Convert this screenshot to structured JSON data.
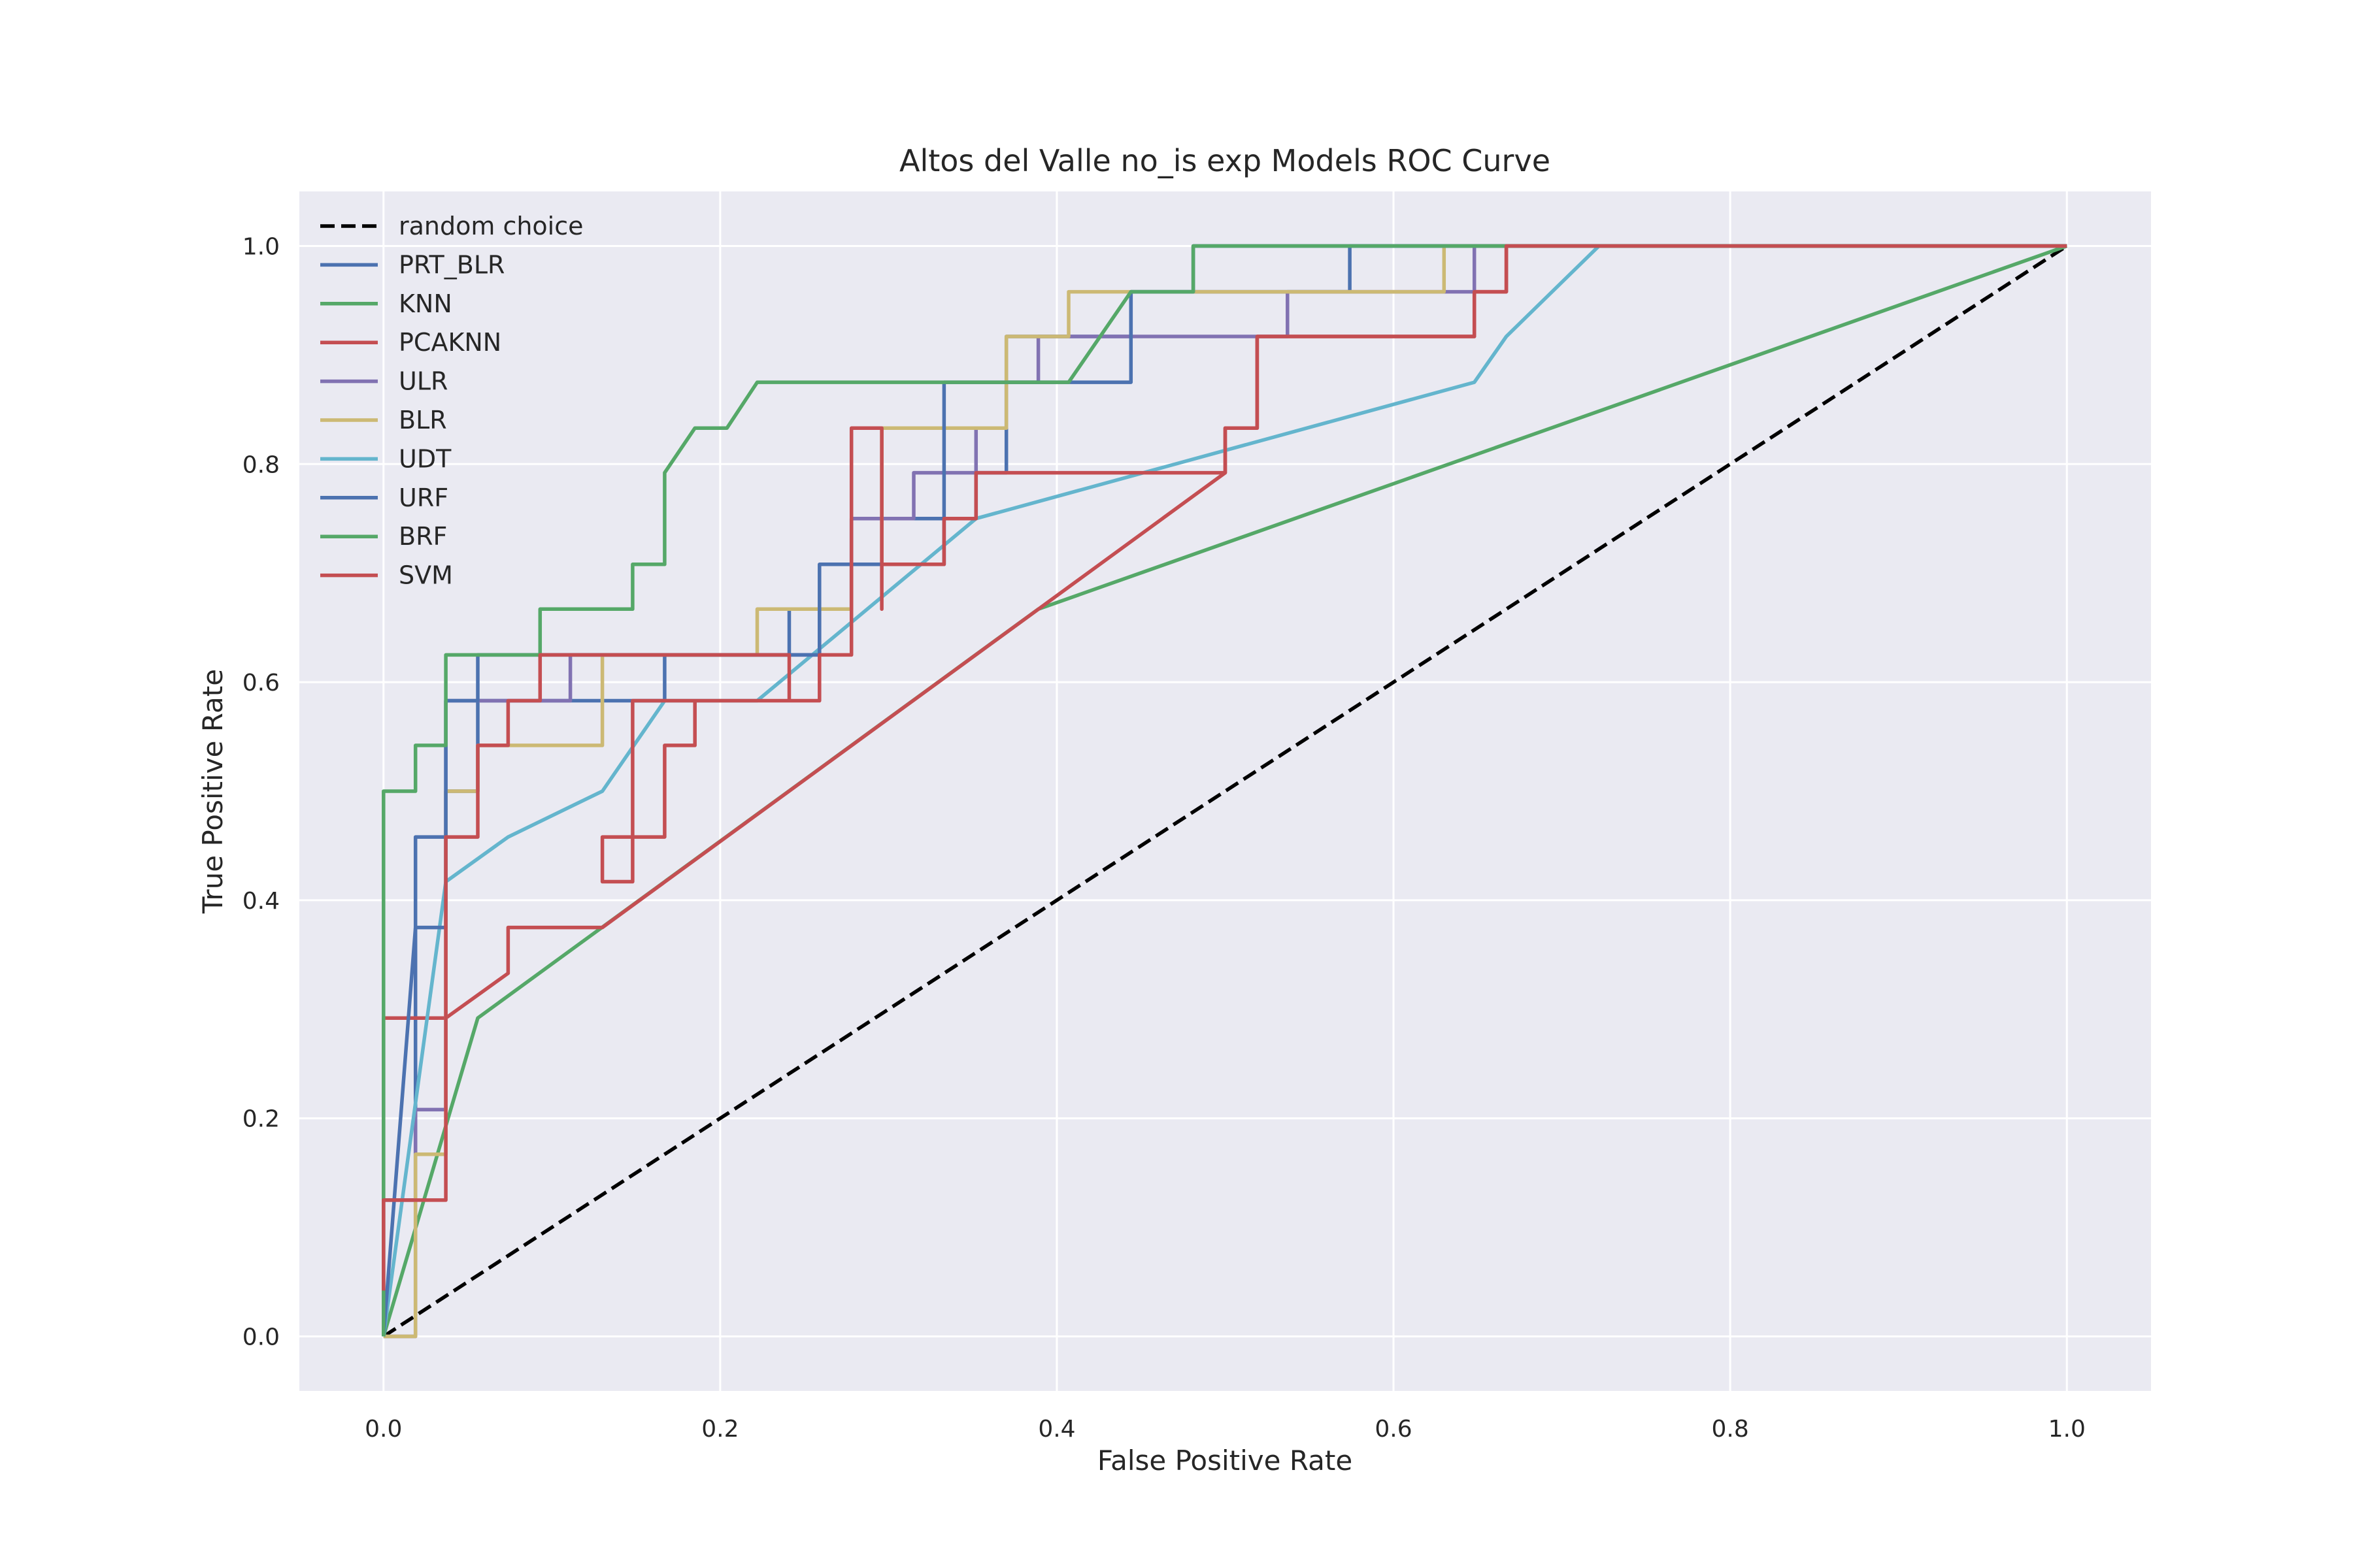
{
  "chart_data": {
    "type": "line",
    "title": "Altos del Valle no_is exp Models ROC Curve",
    "xlabel": "False Positive Rate",
    "ylabel": "True Positive Rate",
    "xlim": [
      -0.05,
      1.05
    ],
    "ylim": [
      -0.05,
      1.05
    ],
    "x_ticks": [
      "0.0",
      "0.2",
      "0.4",
      "0.6",
      "0.8",
      "1.0"
    ],
    "y_ticks": [
      "0.0",
      "0.2",
      "0.4",
      "0.6",
      "0.8",
      "1.0"
    ],
    "x_tick_values": [
      0,
      0.2,
      0.4,
      0.6,
      0.8,
      1.0
    ],
    "y_tick_values": [
      0,
      0.2,
      0.4,
      0.6,
      0.8,
      1.0
    ],
    "grid": true,
    "legend_position": "top-left",
    "series": [
      {
        "name": "random choice",
        "color": "#000000",
        "dashed": true,
        "points": [
          [
            0,
            0
          ],
          [
            1,
            1
          ]
        ]
      },
      {
        "name": "PRT_BLR",
        "color": "#4C72B0",
        "dashed": false,
        "points": [
          [
            0,
            0
          ],
          [
            0,
            0.125
          ],
          [
            0.019,
            0.125
          ],
          [
            0.019,
            0.458
          ],
          [
            0.037,
            0.458
          ],
          [
            0.037,
            0.5
          ],
          [
            0.056,
            0.5
          ],
          [
            0.056,
            0.583
          ],
          [
            0.167,
            0.583
          ],
          [
            0.167,
            0.625
          ],
          [
            0.241,
            0.625
          ],
          [
            0.241,
            0.667
          ],
          [
            0.278,
            0.667
          ],
          [
            0.278,
            0.75
          ],
          [
            0.352,
            0.75
          ],
          [
            0.352,
            0.792
          ],
          [
            0.37,
            0.792
          ],
          [
            0.37,
            0.917
          ],
          [
            0.444,
            0.917
          ],
          [
            0.444,
            0.958
          ],
          [
            0.574,
            0.958
          ],
          [
            0.574,
            1.0
          ],
          [
            1.0,
            1.0
          ]
        ]
      },
      {
        "name": "KNN",
        "color": "#55A868",
        "dashed": false,
        "points": [
          [
            0,
            0
          ],
          [
            0.056,
            0.292
          ],
          [
            0.389,
            0.667
          ],
          [
            1.0,
            1.0
          ]
        ]
      },
      {
        "name": "PCAKNN",
        "color": "#C44E52",
        "dashed": false,
        "points": [
          [
            0,
            0
          ],
          [
            0,
            0.292
          ],
          [
            0.037,
            0.292
          ],
          [
            0.074,
            0.333
          ],
          [
            0.074,
            0.375
          ],
          [
            0.13,
            0.375
          ],
          [
            0.5,
            0.792
          ],
          [
            0.5,
            0.833
          ],
          [
            0.519,
            0.833
          ],
          [
            0.519,
            0.917
          ],
          [
            0.648,
            0.917
          ],
          [
            0.648,
            0.958
          ],
          [
            0.667,
            0.958
          ],
          [
            0.667,
            1.0
          ],
          [
            1.0,
            1.0
          ]
        ]
      },
      {
        "name": "ULR",
        "color": "#8172B2",
        "dashed": false,
        "points": [
          [
            0,
            0
          ],
          [
            0.019,
            0
          ],
          [
            0.019,
            0.208
          ],
          [
            0.037,
            0.208
          ],
          [
            0.037,
            0.583
          ],
          [
            0.111,
            0.583
          ],
          [
            0.111,
            0.625
          ],
          [
            0.259,
            0.625
          ],
          [
            0.259,
            0.667
          ],
          [
            0.278,
            0.667
          ],
          [
            0.278,
            0.75
          ],
          [
            0.315,
            0.75
          ],
          [
            0.315,
            0.792
          ],
          [
            0.352,
            0.792
          ],
          [
            0.352,
            0.833
          ],
          [
            0.37,
            0.833
          ],
          [
            0.37,
            0.875
          ],
          [
            0.389,
            0.875
          ],
          [
            0.389,
            0.917
          ],
          [
            0.537,
            0.917
          ],
          [
            0.537,
            0.958
          ],
          [
            0.648,
            0.958
          ],
          [
            0.648,
            1.0
          ],
          [
            1.0,
            1.0
          ]
        ]
      },
      {
        "name": "BLR",
        "color": "#CCB974",
        "dashed": false,
        "points": [
          [
            0,
            0
          ],
          [
            0.019,
            0
          ],
          [
            0.019,
            0.167
          ],
          [
            0.037,
            0.167
          ],
          [
            0.037,
            0.5
          ],
          [
            0.056,
            0.5
          ],
          [
            0.056,
            0.542
          ],
          [
            0.13,
            0.542
          ],
          [
            0.13,
            0.625
          ],
          [
            0.222,
            0.625
          ],
          [
            0.222,
            0.667
          ],
          [
            0.278,
            0.667
          ],
          [
            0.278,
            0.708
          ],
          [
            0.296,
            0.708
          ],
          [
            0.296,
            0.833
          ],
          [
            0.37,
            0.833
          ],
          [
            0.37,
            0.917
          ],
          [
            0.407,
            0.917
          ],
          [
            0.407,
            0.958
          ],
          [
            0.63,
            0.958
          ],
          [
            0.63,
            1.0
          ],
          [
            1.0,
            1.0
          ]
        ]
      },
      {
        "name": "UDT",
        "color": "#64B5CD",
        "dashed": false,
        "points": [
          [
            0,
            0
          ],
          [
            0.037,
            0.417
          ],
          [
            0.074,
            0.458
          ],
          [
            0.13,
            0.5
          ],
          [
            0.167,
            0.583
          ],
          [
            0.222,
            0.583
          ],
          [
            0.352,
            0.75
          ],
          [
            0.648,
            0.875
          ],
          [
            0.667,
            0.917
          ],
          [
            0.722,
            1.0
          ],
          [
            1.0,
            1.0
          ]
        ]
      },
      {
        "name": "URF",
        "color": "#4C72B0",
        "dashed": false,
        "points": [
          [
            0,
            0
          ],
          [
            0.019,
            0.375
          ],
          [
            0.037,
            0.375
          ],
          [
            0.037,
            0.583
          ],
          [
            0.056,
            0.583
          ],
          [
            0.056,
            0.625
          ],
          [
            0.259,
            0.625
          ],
          [
            0.259,
            0.708
          ],
          [
            0.333,
            0.708
          ],
          [
            0.333,
            0.875
          ],
          [
            0.407,
            0.875
          ],
          [
            0.444,
            0.875
          ],
          [
            0.444,
            0.958
          ],
          [
            0.481,
            0.958
          ],
          [
            0.481,
            1.0
          ],
          [
            1.0,
            1.0
          ]
        ]
      },
      {
        "name": "BRF",
        "color": "#55A868",
        "dashed": false,
        "points": [
          [
            0,
            0
          ],
          [
            0,
            0.5
          ],
          [
            0.019,
            0.5
          ],
          [
            0.019,
            0.542
          ],
          [
            0.037,
            0.542
          ],
          [
            0.037,
            0.625
          ],
          [
            0.093,
            0.625
          ],
          [
            0.093,
            0.667
          ],
          [
            0.148,
            0.667
          ],
          [
            0.148,
            0.708
          ],
          [
            0.167,
            0.708
          ],
          [
            0.167,
            0.792
          ],
          [
            0.185,
            0.833
          ],
          [
            0.204,
            0.833
          ],
          [
            0.222,
            0.875
          ],
          [
            0.407,
            0.875
          ],
          [
            0.444,
            0.958
          ],
          [
            0.481,
            0.958
          ],
          [
            0.481,
            1.0
          ],
          [
            1.0,
            1.0
          ]
        ]
      },
      {
        "name": "SVM",
        "color": "#C44E52",
        "dashed": false,
        "points": [
          [
            0,
            0.042
          ],
          [
            0,
            0.125
          ],
          [
            0.037,
            0.125
          ],
          [
            0.037,
            0.458
          ],
          [
            0.056,
            0.458
          ],
          [
            0.056,
            0.542
          ],
          [
            0.074,
            0.542
          ],
          [
            0.074,
            0.583
          ],
          [
            0.093,
            0.583
          ],
          [
            0.093,
            0.625
          ],
          [
            0.241,
            0.625
          ],
          [
            0.241,
            0.583
          ],
          [
            0.148,
            0.583
          ],
          [
            0.148,
            0.458
          ],
          [
            0.13,
            0.458
          ],
          [
            0.13,
            0.417
          ],
          [
            0.148,
            0.417
          ],
          [
            0.148,
            0.458
          ],
          [
            0.167,
            0.458
          ],
          [
            0.167,
            0.542
          ],
          [
            0.185,
            0.542
          ],
          [
            0.185,
            0.583
          ],
          [
            0.259,
            0.583
          ],
          [
            0.259,
            0.625
          ],
          [
            0.278,
            0.625
          ],
          [
            0.278,
            0.833
          ],
          [
            0.296,
            0.833
          ],
          [
            0.296,
            0.667
          ],
          [
            0.296,
            0.708
          ],
          [
            0.333,
            0.708
          ],
          [
            0.333,
            0.75
          ],
          [
            0.352,
            0.75
          ],
          [
            0.352,
            0.792
          ],
          [
            0.5,
            0.792
          ],
          [
            0.5,
            0.833
          ],
          [
            0.519,
            0.833
          ],
          [
            0.519,
            0.917
          ],
          [
            0.648,
            0.917
          ],
          [
            0.648,
            0.958
          ],
          [
            0.667,
            0.958
          ],
          [
            0.667,
            1.0
          ],
          [
            1.0,
            1.0
          ]
        ]
      }
    ]
  }
}
